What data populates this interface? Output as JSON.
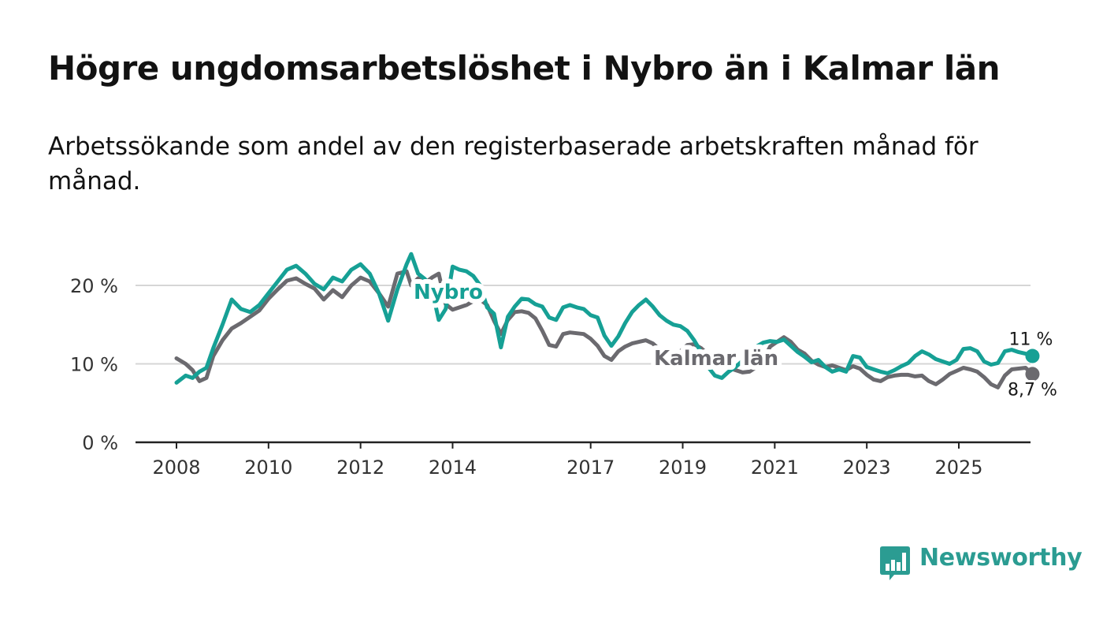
{
  "title": "Högre ungdomsarbetslöshet i Nybro än i Kalmar län",
  "subtitle": "Arbetssökande som andel av den registerbaserade arbetskraften månad för månad.",
  "brand": {
    "name": "Newsworthy",
    "icon": "bar-chart-speech-icon",
    "color": "#2b9c92"
  },
  "chart_data": {
    "type": "line",
    "title": "Högre ungdomsarbetslöshet i Nybro än i Kalmar län",
    "xlabel": "",
    "ylabel": "",
    "xlim": [
      2007.1,
      2026.6
    ],
    "ylim": [
      0,
      25
    ],
    "y_ticks": [
      0,
      10,
      20
    ],
    "y_tick_labels": [
      "0 %",
      "10 %",
      "20 %"
    ],
    "x_ticks": [
      2008,
      2010,
      2012,
      2014,
      2017,
      2019,
      2021,
      2023,
      2025
    ],
    "x_tick_labels": [
      "2008",
      "2010",
      "2012",
      "2014",
      "2017",
      "2019",
      "2021",
      "2023",
      "2025"
    ],
    "grid": true,
    "series": [
      {
        "name": "Kalmar län",
        "color": "#6b6a6f",
        "label": "Kalmar län",
        "end_label": "8,7 %",
        "points": [
          [
            2008.0,
            10.7
          ],
          [
            2008.2,
            10.0
          ],
          [
            2008.35,
            9.2
          ],
          [
            2008.5,
            7.8
          ],
          [
            2008.65,
            8.2
          ],
          [
            2008.8,
            11.0
          ],
          [
            2009.0,
            13.0
          ],
          [
            2009.2,
            14.5
          ],
          [
            2009.4,
            15.2
          ],
          [
            2009.6,
            16.0
          ],
          [
            2009.8,
            16.8
          ],
          [
            2010.0,
            18.3
          ],
          [
            2010.2,
            19.5
          ],
          [
            2010.4,
            20.6
          ],
          [
            2010.6,
            20.9
          ],
          [
            2010.8,
            20.2
          ],
          [
            2011.0,
            19.6
          ],
          [
            2011.2,
            18.2
          ],
          [
            2011.4,
            19.4
          ],
          [
            2011.6,
            18.5
          ],
          [
            2011.8,
            20.0
          ],
          [
            2012.0,
            21.0
          ],
          [
            2012.2,
            20.5
          ],
          [
            2012.4,
            19.0
          ],
          [
            2012.6,
            17.3
          ],
          [
            2012.8,
            21.5
          ],
          [
            2013.0,
            21.8
          ],
          [
            2013.1,
            20.0
          ],
          [
            2013.25,
            20.9
          ],
          [
            2013.4,
            20.3
          ],
          [
            2013.55,
            21.0
          ],
          [
            2013.7,
            21.5
          ],
          [
            2013.85,
            17.6
          ],
          [
            2014.0,
            16.9
          ],
          [
            2014.15,
            17.2
          ],
          [
            2014.3,
            17.5
          ],
          [
            2014.45,
            18.0
          ],
          [
            2014.6,
            18.2
          ],
          [
            2014.75,
            17.5
          ],
          [
            2014.9,
            15.5
          ],
          [
            2015.05,
            13.8
          ],
          [
            2015.2,
            15.6
          ],
          [
            2015.35,
            16.6
          ],
          [
            2015.5,
            16.7
          ],
          [
            2015.65,
            16.5
          ],
          [
            2015.8,
            15.8
          ],
          [
            2015.95,
            14.2
          ],
          [
            2016.1,
            12.4
          ],
          [
            2016.25,
            12.2
          ],
          [
            2016.4,
            13.8
          ],
          [
            2016.55,
            14.0
          ],
          [
            2016.7,
            13.9
          ],
          [
            2016.85,
            13.8
          ],
          [
            2017.0,
            13.2
          ],
          [
            2017.15,
            12.3
          ],
          [
            2017.3,
            11.0
          ],
          [
            2017.45,
            10.5
          ],
          [
            2017.6,
            11.6
          ],
          [
            2017.75,
            12.2
          ],
          [
            2017.9,
            12.6
          ],
          [
            2018.05,
            12.8
          ],
          [
            2018.2,
            13.0
          ],
          [
            2018.35,
            12.6
          ],
          [
            2018.5,
            11.8
          ],
          [
            2018.65,
            11.2
          ],
          [
            2018.8,
            10.8
          ],
          [
            2018.95,
            11.6
          ],
          [
            2019.1,
            12.4
          ],
          [
            2019.25,
            12.5
          ],
          [
            2019.4,
            12.0
          ],
          [
            2019.55,
            11.2
          ],
          [
            2019.7,
            10.3
          ],
          [
            2019.85,
            9.8
          ],
          [
            2020.0,
            9.5
          ],
          [
            2020.15,
            9.2
          ],
          [
            2020.3,
            8.9
          ],
          [
            2020.45,
            9.0
          ],
          [
            2020.6,
            9.6
          ],
          [
            2020.75,
            10.5
          ],
          [
            2020.9,
            12.2
          ],
          [
            2021.05,
            12.8
          ],
          [
            2021.2,
            13.4
          ],
          [
            2021.35,
            12.8
          ],
          [
            2021.5,
            11.8
          ],
          [
            2021.65,
            11.3
          ],
          [
            2021.8,
            10.4
          ],
          [
            2021.95,
            9.9
          ],
          [
            2022.1,
            9.6
          ],
          [
            2022.25,
            9.8
          ],
          [
            2022.4,
            9.5
          ],
          [
            2022.55,
            9.2
          ],
          [
            2022.7,
            9.7
          ],
          [
            2022.85,
            9.4
          ],
          [
            2023.0,
            8.6
          ],
          [
            2023.15,
            8.0
          ],
          [
            2023.3,
            7.8
          ],
          [
            2023.45,
            8.3
          ],
          [
            2023.6,
            8.5
          ],
          [
            2023.75,
            8.6
          ],
          [
            2023.9,
            8.6
          ],
          [
            2024.05,
            8.4
          ],
          [
            2024.2,
            8.5
          ],
          [
            2024.35,
            7.8
          ],
          [
            2024.5,
            7.4
          ],
          [
            2024.65,
            8.0
          ],
          [
            2024.8,
            8.7
          ],
          [
            2024.95,
            9.1
          ],
          [
            2025.1,
            9.5
          ],
          [
            2025.25,
            9.3
          ],
          [
            2025.4,
            9.0
          ],
          [
            2025.55,
            8.3
          ],
          [
            2025.7,
            7.4
          ],
          [
            2025.85,
            7.0
          ],
          [
            2026.0,
            8.5
          ],
          [
            2026.15,
            9.3
          ],
          [
            2026.3,
            9.4
          ],
          [
            2026.45,
            9.5
          ],
          [
            2026.6,
            8.7
          ]
        ]
      },
      {
        "name": "Nybro",
        "color": "#16a095",
        "label": "Nybro",
        "end_label": "11 %",
        "points": [
          [
            2008.0,
            7.6
          ],
          [
            2008.2,
            8.5
          ],
          [
            2008.35,
            8.2
          ],
          [
            2008.5,
            9.0
          ],
          [
            2008.65,
            9.5
          ],
          [
            2008.8,
            12.0
          ],
          [
            2009.0,
            15.0
          ],
          [
            2009.2,
            18.2
          ],
          [
            2009.4,
            17.0
          ],
          [
            2009.6,
            16.6
          ],
          [
            2009.8,
            17.5
          ],
          [
            2010.0,
            19.0
          ],
          [
            2010.2,
            20.5
          ],
          [
            2010.4,
            22.0
          ],
          [
            2010.6,
            22.5
          ],
          [
            2010.8,
            21.5
          ],
          [
            2011.0,
            20.2
          ],
          [
            2011.2,
            19.5
          ],
          [
            2011.4,
            21.0
          ],
          [
            2011.6,
            20.5
          ],
          [
            2011.8,
            22.0
          ],
          [
            2012.0,
            22.7
          ],
          [
            2012.2,
            21.5
          ],
          [
            2012.4,
            19.0
          ],
          [
            2012.6,
            15.5
          ],
          [
            2012.8,
            19.5
          ],
          [
            2013.0,
            22.7
          ],
          [
            2013.1,
            24.0
          ],
          [
            2013.25,
            21.5
          ],
          [
            2013.4,
            20.8
          ],
          [
            2013.55,
            19.5
          ],
          [
            2013.7,
            15.6
          ],
          [
            2013.85,
            17.0
          ],
          [
            2014.0,
            22.4
          ],
          [
            2014.15,
            22.0
          ],
          [
            2014.3,
            21.8
          ],
          [
            2014.45,
            21.2
          ],
          [
            2014.6,
            20.0
          ],
          [
            2014.75,
            17.2
          ],
          [
            2014.9,
            16.4
          ],
          [
            2015.05,
            12.1
          ],
          [
            2015.2,
            16.0
          ],
          [
            2015.35,
            17.3
          ],
          [
            2015.5,
            18.3
          ],
          [
            2015.65,
            18.2
          ],
          [
            2015.8,
            17.6
          ],
          [
            2015.95,
            17.3
          ],
          [
            2016.1,
            15.9
          ],
          [
            2016.25,
            15.6
          ],
          [
            2016.4,
            17.2
          ],
          [
            2016.55,
            17.5
          ],
          [
            2016.7,
            17.2
          ],
          [
            2016.85,
            17.0
          ],
          [
            2017.0,
            16.2
          ],
          [
            2017.15,
            15.9
          ],
          [
            2017.3,
            13.6
          ],
          [
            2017.45,
            12.3
          ],
          [
            2017.6,
            13.5
          ],
          [
            2017.75,
            15.2
          ],
          [
            2017.9,
            16.6
          ],
          [
            2018.05,
            17.5
          ],
          [
            2018.2,
            18.2
          ],
          [
            2018.35,
            17.3
          ],
          [
            2018.5,
            16.2
          ],
          [
            2018.65,
            15.5
          ],
          [
            2018.8,
            15.0
          ],
          [
            2018.95,
            14.8
          ],
          [
            2019.1,
            14.2
          ],
          [
            2019.25,
            13.0
          ],
          [
            2019.4,
            11.5
          ],
          [
            2019.55,
            9.6
          ],
          [
            2019.7,
            8.5
          ],
          [
            2019.85,
            8.2
          ],
          [
            2020.0,
            9.0
          ],
          [
            2020.15,
            9.6
          ],
          [
            2020.3,
            10.4
          ],
          [
            2020.45,
            11.2
          ],
          [
            2020.6,
            12.2
          ],
          [
            2020.75,
            12.7
          ],
          [
            2020.9,
            12.9
          ],
          [
            2021.05,
            12.8
          ],
          [
            2021.2,
            13.1
          ],
          [
            2021.35,
            12.3
          ],
          [
            2021.5,
            11.5
          ],
          [
            2021.65,
            10.9
          ],
          [
            2021.8,
            10.2
          ],
          [
            2021.95,
            10.5
          ],
          [
            2022.1,
            9.6
          ],
          [
            2022.25,
            9.0
          ],
          [
            2022.4,
            9.3
          ],
          [
            2022.55,
            9.0
          ],
          [
            2022.7,
            11.0
          ],
          [
            2022.85,
            10.8
          ],
          [
            2023.0,
            9.6
          ],
          [
            2023.15,
            9.3
          ],
          [
            2023.3,
            9.0
          ],
          [
            2023.45,
            8.8
          ],
          [
            2023.6,
            9.2
          ],
          [
            2023.75,
            9.7
          ],
          [
            2023.9,
            10.1
          ],
          [
            2024.05,
            11.0
          ],
          [
            2024.2,
            11.6
          ],
          [
            2024.35,
            11.2
          ],
          [
            2024.5,
            10.6
          ],
          [
            2024.65,
            10.3
          ],
          [
            2024.8,
            10.0
          ],
          [
            2024.95,
            10.5
          ],
          [
            2025.1,
            11.9
          ],
          [
            2025.25,
            12.0
          ],
          [
            2025.4,
            11.6
          ],
          [
            2025.55,
            10.3
          ],
          [
            2025.7,
            9.9
          ],
          [
            2025.85,
            10.1
          ],
          [
            2026.0,
            11.6
          ],
          [
            2026.15,
            11.8
          ],
          [
            2026.3,
            11.5
          ],
          [
            2026.45,
            11.3
          ],
          [
            2026.6,
            11.0
          ]
        ]
      }
    ]
  }
}
